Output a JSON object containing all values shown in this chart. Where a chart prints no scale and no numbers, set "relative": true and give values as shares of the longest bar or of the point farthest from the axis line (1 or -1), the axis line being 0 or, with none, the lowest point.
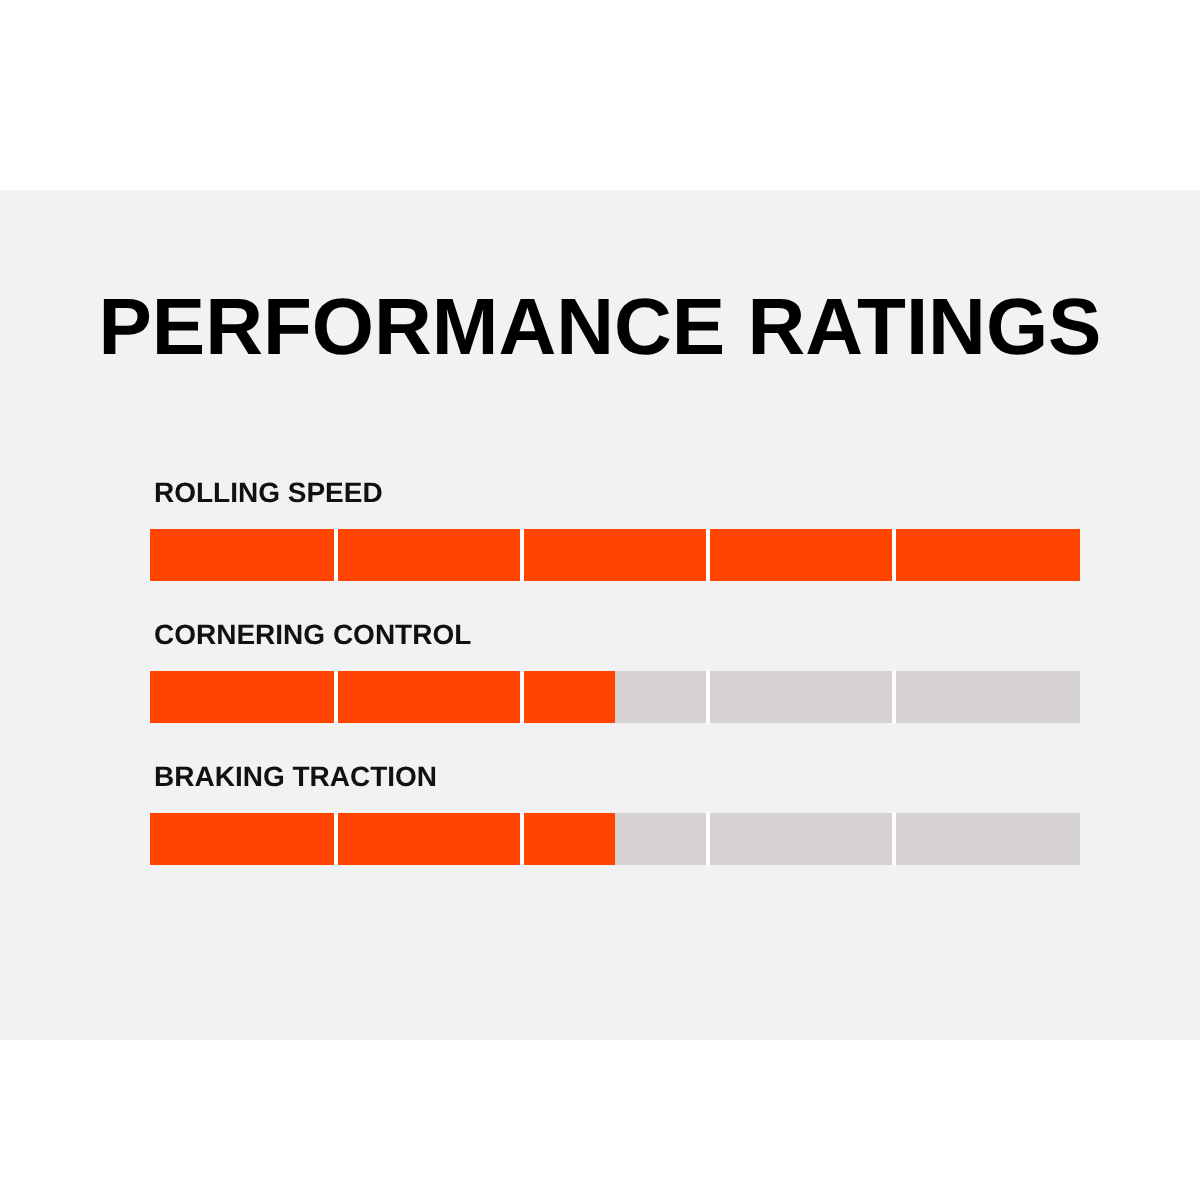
{
  "chart_data": {
    "type": "bar",
    "title": "PERFORMANCE RATINGS",
    "orientation": "horizontal",
    "relative": true,
    "stacked": true,
    "categories": [
      "ROLLING SPEED",
      "CORNERING CONTROL",
      "BRAKING TRACTION"
    ],
    "series": [
      {
        "color": "#ff4500",
        "values": [
          1,
          0.5,
          0.5
        ]
      },
      {
        "color": "#d6d2d2",
        "values": [
          0,
          0.5,
          0.5
        ]
      }
    ]
  }
}
